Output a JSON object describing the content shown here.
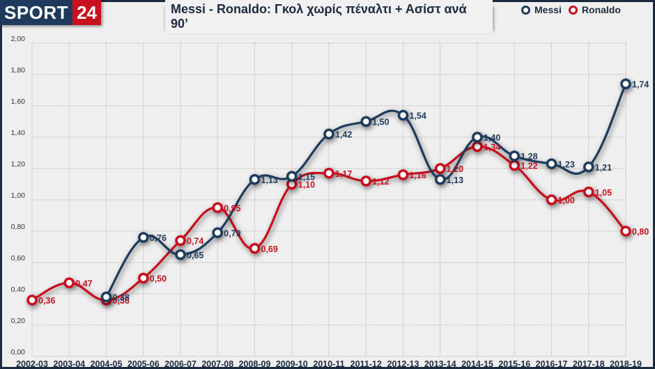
{
  "brand": {
    "name_part1": "SPORT",
    "name_part2": "24"
  },
  "colors": {
    "messi": "#1f3a5c",
    "ronaldo": "#c8101e",
    "background": "#efefef",
    "frame": "#1b2a3e"
  },
  "chart_data": {
    "type": "line",
    "title": "Messi - Ronaldo: Γκολ χωρίς πέναλτι + Ασίστ ανά 90’",
    "xlabel": "",
    "ylabel": "",
    "ylim": [
      0,
      2.0
    ],
    "yticks": [
      "0,00",
      "0,20",
      "0,40",
      "0,60",
      "0,80",
      "1,00",
      "1,20",
      "1,40",
      "1,60",
      "1,80",
      "2,00"
    ],
    "grid": true,
    "legend_position": "top-right",
    "categories": [
      "2002-03",
      "2003-04",
      "2004-05",
      "2005-06",
      "2006-07",
      "2007-08",
      "2008-09",
      "2009-10",
      "2010-11",
      "2011-12",
      "2012-13",
      "2013-14",
      "2014-15",
      "2015-16",
      "2016-17",
      "2017-18",
      "2018-19"
    ],
    "series": [
      {
        "name": "Messi",
        "color": "#1f3a5c",
        "values": [
          null,
          null,
          0.38,
          0.76,
          0.65,
          0.79,
          1.13,
          1.15,
          1.42,
          1.5,
          1.54,
          1.13,
          1.4,
          1.28,
          1.23,
          1.21,
          1.74
        ],
        "labels": [
          null,
          null,
          "0,38",
          "0,76",
          "0,65",
          "0,79",
          "1,13",
          "1,15",
          "1,42",
          "1,50",
          "1,54",
          "1,13",
          "1,40",
          "1,28",
          "1,23",
          "1,21",
          "1,74"
        ]
      },
      {
        "name": "Ronaldo",
        "color": "#c8101e",
        "values": [
          0.36,
          0.47,
          0.36,
          0.5,
          0.74,
          0.95,
          0.69,
          1.1,
          1.17,
          1.12,
          1.16,
          1.2,
          1.34,
          1.22,
          1.0,
          1.05,
          0.8
        ],
        "labels": [
          "0,36",
          "0,47",
          "0,36",
          "0,50",
          "0,74",
          "0,95",
          "0,69",
          "1,10",
          "1,17",
          "1,12",
          "1,16",
          "1,20",
          "1,34",
          "1,22",
          "1,00",
          "1,05",
          "0,80"
        ]
      }
    ]
  }
}
